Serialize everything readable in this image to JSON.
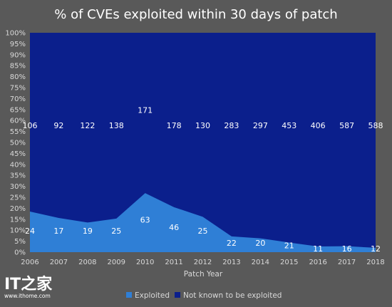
{
  "chart_data": {
    "type": "area",
    "title": "% of CVEs exploited within 30 days of patch",
    "xlabel": "Patch Year",
    "ylabel": "",
    "x": [
      "2006",
      "2007",
      "2008",
      "2009",
      "2010",
      "2011",
      "2012",
      "2013",
      "2014",
      "2015",
      "2016",
      "2017",
      "2018"
    ],
    "yticks": [
      "0%",
      "5%",
      "10%",
      "15%",
      "20%",
      "25%",
      "30%",
      "35%",
      "40%",
      "45%",
      "50%",
      "55%",
      "60%",
      "65%",
      "70%",
      "75%",
      "80%",
      "85%",
      "90%",
      "95%",
      "100%"
    ],
    "ylim": [
      0,
      100
    ],
    "stacked": true,
    "series": [
      {
        "name": "Exploited",
        "color": "#2f7fd6",
        "counts": [
          24,
          17,
          19,
          25,
          63,
          46,
          25,
          22,
          20,
          21,
          11,
          16,
          12
        ],
        "percent": [
          18.5,
          15.6,
          13.5,
          15.3,
          26.9,
          20.5,
          16.1,
          7.2,
          6.3,
          4.4,
          2.6,
          2.7,
          2.0
        ]
      },
      {
        "name": "Not known to be exploited",
        "color": "#0b1f8c",
        "counts": [
          106,
          92,
          122,
          138,
          171,
          178,
          130,
          283,
          297,
          453,
          406,
          587,
          588
        ]
      }
    ],
    "legend": "bottom",
    "grid": false
  },
  "watermark": {
    "logo": "IT之家",
    "url": "www.ithome.com"
  }
}
